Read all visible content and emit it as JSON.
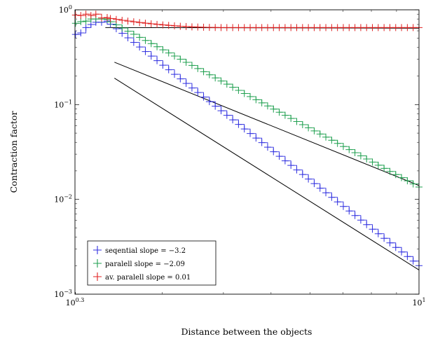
{
  "chart_data": {
    "type": "line",
    "xlabel": "Distance between the objects",
    "ylabel": "Contraction factor",
    "x_scale": "log",
    "y_scale": "log",
    "xlim": [
      1.995,
      10
    ],
    "ylim": [
      0.001,
      1
    ],
    "x_ticks": [
      {
        "value": 1.995,
        "base": "10",
        "exp": "0.3"
      },
      {
        "value": 10,
        "base": "10",
        "exp": "1"
      }
    ],
    "y_ticks": [
      {
        "value": 1,
        "base": "10",
        "exp": "0"
      },
      {
        "value": 0.1,
        "base": "10",
        "exp": "−1"
      },
      {
        "value": 0.01,
        "base": "10",
        "exp": "−2"
      },
      {
        "value": 0.001,
        "base": "10",
        "exp": "−3"
      }
    ],
    "grid": false,
    "legend_position": "bottom-left",
    "series": [
      {
        "name": "seqential slope = −3.2",
        "color": "#3030e0",
        "marker": "plus",
        "x_start": 2.0,
        "x_end": 10.0,
        "n_points": 60,
        "points": [
          [
            2.0,
            0.55
          ],
          [
            2.05,
            0.57
          ],
          [
            2.1,
            0.65
          ],
          [
            2.15,
            0.7
          ],
          [
            2.2,
            0.74
          ],
          [
            2.26,
            0.74
          ],
          [
            2.32,
            0.76
          ]
        ],
        "fit_start": [
          2.32,
          0.75
        ],
        "fit_end": [
          10.0,
          0.002
        ]
      },
      {
        "name": "paralell slope = −2.09",
        "color": "#20a050",
        "marker": "plus",
        "x_start": 2.0,
        "x_end": 10.0,
        "n_points": 60,
        "points": [
          [
            2.0,
            0.72
          ],
          [
            2.05,
            0.75
          ],
          [
            2.1,
            0.76
          ],
          [
            2.15,
            0.8
          ],
          [
            2.2,
            0.8
          ],
          [
            2.26,
            0.8
          ],
          [
            2.32,
            0.79
          ]
        ],
        "fit_start": [
          2.32,
          0.78
        ],
        "fit_end": [
          10.0,
          0.0135
        ]
      },
      {
        "name": "av. paralell slope = 0.01",
        "color": "#e02020",
        "marker": "plus",
        "x_start": 2.0,
        "x_end": 10.0,
        "n_points": 60,
        "points": [
          [
            2.0,
            0.88
          ],
          [
            2.05,
            0.87
          ],
          [
            2.1,
            0.9
          ],
          [
            2.15,
            0.87
          ],
          [
            2.2,
            0.9
          ],
          [
            2.26,
            0.82
          ],
          [
            2.32,
            0.83
          ]
        ],
        "fit_start": [
          2.32,
          0.82
        ],
        "fit_end": [
          10.0,
          0.65
        ],
        "fit_knee_x": 4.0
      }
    ],
    "reference_lines": [
      {
        "from": [
          2.4,
          0.19
        ],
        "to": [
          10.0,
          0.0018
        ]
      },
      {
        "from": [
          2.4,
          0.28
        ],
        "to": [
          10.0,
          0.014
        ]
      },
      {
        "from": [
          2.3,
          0.65
        ],
        "to": [
          10.0,
          0.64
        ]
      }
    ]
  }
}
